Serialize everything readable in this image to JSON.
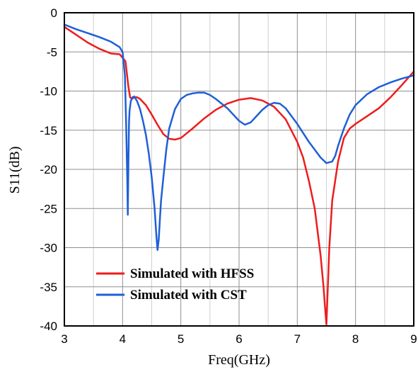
{
  "chart_data": {
    "type": "line",
    "xlabel": "Freq(GHz)",
    "ylabel": "S11(dB)",
    "xlim": [
      3,
      9
    ],
    "ylim": [
      -40,
      0
    ],
    "xticks": [
      "3",
      "4",
      "5",
      "6",
      "7",
      "8",
      "9"
    ],
    "yticks": [
      "0",
      "-5",
      "-10",
      "-15",
      "-20",
      "-25",
      "-30",
      "-35",
      "-40"
    ],
    "minor_grid_x": [
      3.5,
      4.5,
      5.5,
      6.5,
      7.5,
      8.5
    ],
    "grid": true,
    "legend_position": "bottom-left",
    "series": [
      {
        "name": "Simulated with HFSS",
        "color": "#ee1c1c",
        "x": [
          3.0,
          3.2,
          3.4,
          3.6,
          3.8,
          3.95,
          4.05,
          4.1,
          4.13,
          4.16,
          4.2,
          4.25,
          4.3,
          4.4,
          4.5,
          4.6,
          4.7,
          4.8,
          4.9,
          5.0,
          5.1,
          5.2,
          5.4,
          5.6,
          5.8,
          6.0,
          6.2,
          6.4,
          6.6,
          6.8,
          7.0,
          7.1,
          7.2,
          7.3,
          7.4,
          7.45,
          7.48,
          7.5,
          7.52,
          7.55,
          7.6,
          7.7,
          7.8,
          7.9,
          8.0,
          8.2,
          8.4,
          8.6,
          8.8,
          9.0
        ],
        "y": [
          -1.8,
          -2.8,
          -3.8,
          -4.6,
          -5.2,
          -5.3,
          -6.2,
          -9.5,
          -10.8,
          -11.0,
          -10.8,
          -10.8,
          -11.0,
          -11.8,
          -13.0,
          -14.3,
          -15.5,
          -16.1,
          -16.2,
          -16.0,
          -15.4,
          -14.8,
          -13.5,
          -12.4,
          -11.6,
          -11.1,
          -10.9,
          -11.2,
          -12.0,
          -13.6,
          -16.5,
          -18.5,
          -21.5,
          -25.0,
          -31.0,
          -35.0,
          -38.0,
          -39.8,
          -36.0,
          -30.0,
          -24.0,
          -19.0,
          -16.0,
          -14.8,
          -14.2,
          -13.2,
          -12.2,
          -10.8,
          -9.2,
          -7.5
        ]
      },
      {
        "name": "Simulated with CST",
        "color": "#1f5fd6",
        "x": [
          3.0,
          3.2,
          3.4,
          3.6,
          3.8,
          3.95,
          4.0,
          4.04,
          4.06,
          4.08,
          4.09,
          4.1,
          4.11,
          4.12,
          4.14,
          4.17,
          4.2,
          4.25,
          4.3,
          4.35,
          4.4,
          4.45,
          4.5,
          4.55,
          4.58,
          4.6,
          4.62,
          4.64,
          4.66,
          4.7,
          4.75,
          4.8,
          4.9,
          5.0,
          5.1,
          5.2,
          5.3,
          5.4,
          5.5,
          5.6,
          5.8,
          6.0,
          6.1,
          6.2,
          6.3,
          6.4,
          6.5,
          6.6,
          6.7,
          6.8,
          7.0,
          7.2,
          7.4,
          7.5,
          7.6,
          7.65,
          7.7,
          7.8,
          7.9,
          8.0,
          8.2,
          8.4,
          8.6,
          8.8,
          9.0
        ],
        "y": [
          -1.5,
          -2.1,
          -2.6,
          -3.1,
          -3.7,
          -4.4,
          -5.0,
          -8.0,
          -14.0,
          -21.0,
          -25.8,
          -19.0,
          -14.0,
          -12.5,
          -11.3,
          -10.8,
          -10.7,
          -11.3,
          -12.3,
          -13.8,
          -15.6,
          -18.0,
          -21.0,
          -25.0,
          -28.5,
          -30.3,
          -29.0,
          -26.5,
          -24.0,
          -21.0,
          -17.5,
          -14.8,
          -12.3,
          -11.0,
          -10.5,
          -10.3,
          -10.2,
          -10.2,
          -10.5,
          -11.0,
          -12.2,
          -13.8,
          -14.3,
          -14.0,
          -13.2,
          -12.4,
          -11.8,
          -11.5,
          -11.6,
          -12.2,
          -14.2,
          -16.5,
          -18.5,
          -19.2,
          -19.0,
          -18.3,
          -17.0,
          -14.8,
          -13.0,
          -11.8,
          -10.4,
          -9.5,
          -8.9,
          -8.4,
          -8.0
        ]
      }
    ]
  }
}
